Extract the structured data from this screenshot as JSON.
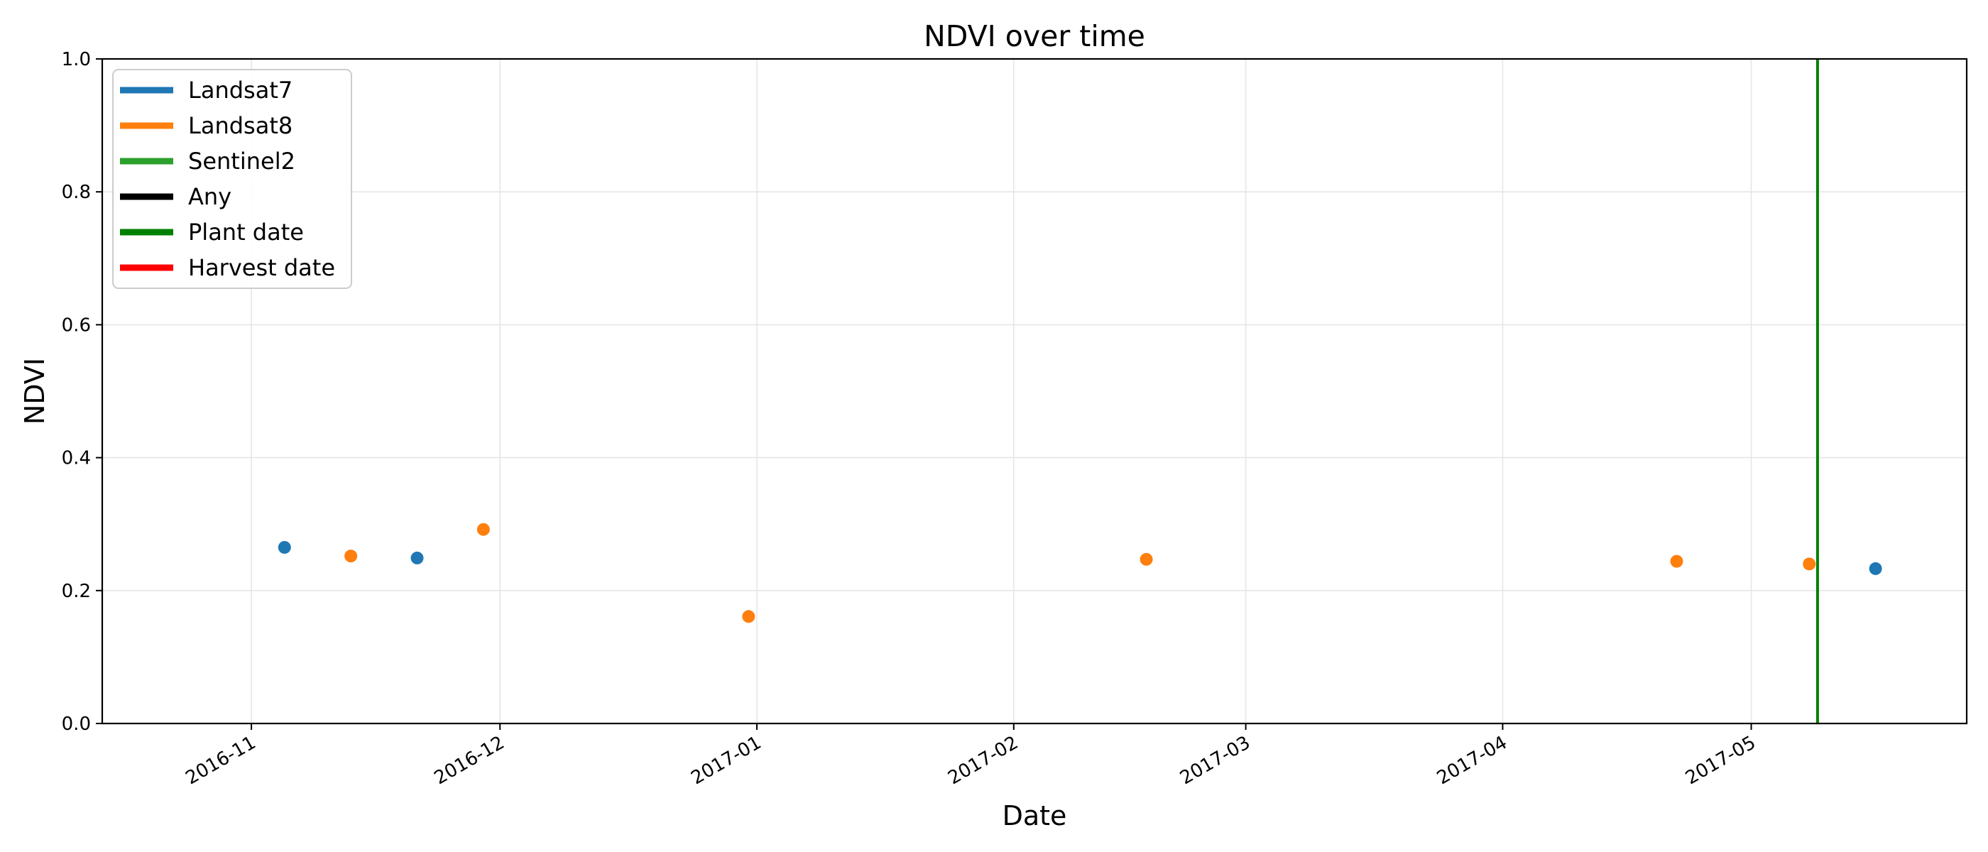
{
  "chart_data": {
    "type": "scatter",
    "title": "NDVI over time",
    "xlabel": "Date",
    "ylabel": "NDVI",
    "xlim": [
      "2016-10-14",
      "2017-05-27"
    ],
    "ylim": [
      0.0,
      1.0
    ],
    "grid": true,
    "legend_position": "top-left",
    "x_ticks": [
      "2016-11",
      "2016-12",
      "2017-01",
      "2017-02",
      "2017-03",
      "2017-04",
      "2017-05"
    ],
    "x_tick_dates": [
      "2016-11-01",
      "2016-12-01",
      "2017-01-01",
      "2017-02-01",
      "2017-03-01",
      "2017-04-01",
      "2017-05-01"
    ],
    "y_ticks": [
      "0.0",
      "0.2",
      "0.4",
      "0.6",
      "0.8",
      "1.0"
    ],
    "y_tick_values": [
      0.0,
      0.2,
      0.4,
      0.6,
      0.8,
      1.0
    ],
    "series": [
      {
        "name": "Landsat7",
        "color": "#1f77b4",
        "points": [
          {
            "x": "2016-11-05",
            "y": 0.265
          },
          {
            "x": "2016-11-21",
            "y": 0.249
          },
          {
            "x": "2017-05-16",
            "y": 0.233
          }
        ]
      },
      {
        "name": "Landsat8",
        "color": "#ff7f0e",
        "points": [
          {
            "x": "2016-11-13",
            "y": 0.252
          },
          {
            "x": "2016-11-29",
            "y": 0.292
          },
          {
            "x": "2016-12-31",
            "y": 0.161
          },
          {
            "x": "2017-02-17",
            "y": 0.247
          },
          {
            "x": "2017-04-22",
            "y": 0.244
          },
          {
            "x": "2017-05-08",
            "y": 0.24
          }
        ]
      },
      {
        "name": "Sentinel2",
        "color": "#2ca02c",
        "points": []
      },
      {
        "name": "Any",
        "color": "#000000",
        "points": []
      }
    ],
    "plant_date": {
      "name": "Plant date",
      "x": "2017-05-09",
      "color": "#008000"
    },
    "harvest_date": {
      "name": "Harvest date",
      "color": "#ff0000"
    },
    "legend": [
      {
        "label": "Landsat7",
        "color": "#1f77b4"
      },
      {
        "label": "Landsat8",
        "color": "#ff7f0e"
      },
      {
        "label": "Sentinel2",
        "color": "#2ca02c"
      },
      {
        "label": "Any",
        "color": "#000000"
      },
      {
        "label": "Plant date",
        "color": "#008000"
      },
      {
        "label": "Harvest date",
        "color": "#ff0000"
      }
    ]
  }
}
